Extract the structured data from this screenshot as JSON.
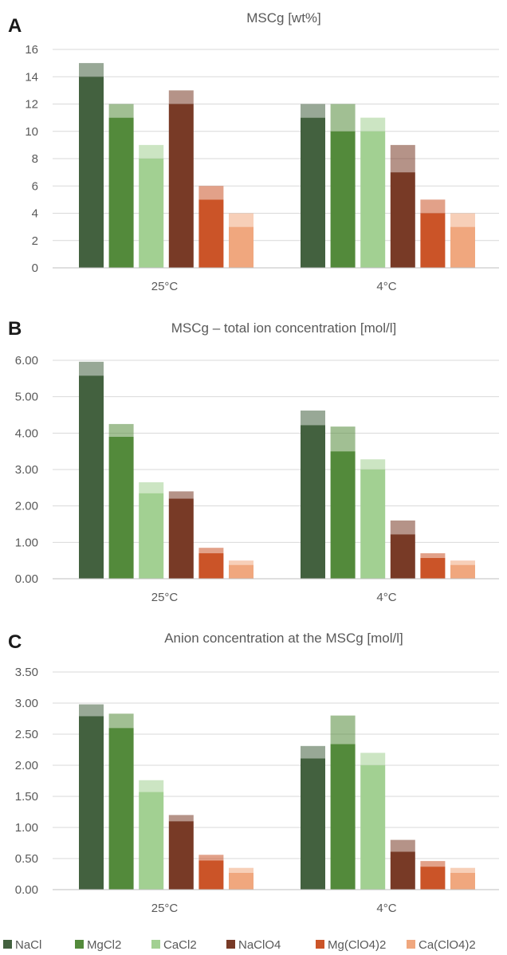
{
  "colors": {
    "NaCl": "#43613f",
    "MgCl2": "#538a3b",
    "CaCl2": "#a2d092",
    "NaClO4": "#783a26",
    "Mg(ClO4)2": "#cb5428",
    "Ca(ClO4)2": "#f0a77e",
    "upper_opacity": 0.55,
    "grid": "#d9d9d9",
    "tick_text": "#595959"
  },
  "legend": {
    "position": "bottom",
    "items": [
      "NaCl",
      "MgCl2",
      "CaCl2",
      "NaClO4",
      "Mg(ClO4)2",
      "Ca(ClO4)2"
    ]
  },
  "chart_data": [
    {
      "panel": "A",
      "type": "bar",
      "title": "MSCg  [wt%]",
      "categories": [
        "25°C",
        "4°C"
      ],
      "ylim": [
        0,
        16
      ],
      "yticks": [
        "0",
        "2",
        "4",
        "6",
        "8",
        "10",
        "12",
        "14",
        "16"
      ],
      "grid": true,
      "series": [
        {
          "name": "NaCl",
          "values": [
            14,
            11
          ],
          "upper": [
            15,
            12
          ]
        },
        {
          "name": "MgCl2",
          "values": [
            11,
            10
          ],
          "upper": [
            12,
            12
          ]
        },
        {
          "name": "CaCl2",
          "values": [
            8,
            10
          ],
          "upper": [
            9,
            11
          ]
        },
        {
          "name": "NaClO4",
          "values": [
            12,
            7
          ],
          "upper": [
            13,
            9
          ]
        },
        {
          "name": "Mg(ClO4)2",
          "values": [
            5,
            4
          ],
          "upper": [
            6,
            5
          ]
        },
        {
          "name": "Ca(ClO4)2",
          "values": [
            3,
            3
          ],
          "upper": [
            4,
            4
          ]
        }
      ]
    },
    {
      "panel": "B",
      "type": "bar",
      "title": "MSCg – total ion concentration [mol/l]",
      "categories": [
        "25°C",
        "4°C"
      ],
      "ylim": [
        0,
        6
      ],
      "yticks": [
        "0.00",
        "1.00",
        "2.00",
        "3.00",
        "4.00",
        "5.00",
        "6.00"
      ],
      "grid": true,
      "series": [
        {
          "name": "NaCl",
          "values": [
            5.58,
            4.22
          ],
          "upper": [
            5.96,
            4.62
          ]
        },
        {
          "name": "MgCl2",
          "values": [
            3.9,
            3.5
          ],
          "upper": [
            4.25,
            4.18
          ]
        },
        {
          "name": "CaCl2",
          "values": [
            2.35,
            3.0
          ],
          "upper": [
            2.65,
            3.28
          ]
        },
        {
          "name": "NaClO4",
          "values": [
            2.2,
            1.22
          ],
          "upper": [
            2.4,
            1.6
          ]
        },
        {
          "name": "Mg(ClO4)2",
          "values": [
            0.7,
            0.57
          ],
          "upper": [
            0.85,
            0.7
          ]
        },
        {
          "name": "Ca(ClO4)2",
          "values": [
            0.38,
            0.38
          ],
          "upper": [
            0.5,
            0.5
          ]
        }
      ]
    },
    {
      "panel": "C",
      "type": "bar",
      "title": "Anion concentration at the MSCg [mol/l]",
      "categories": [
        "25°C",
        "4°C"
      ],
      "ylim": [
        0,
        3.5
      ],
      "yticks": [
        "0.00",
        "0.50",
        "1.00",
        "1.50",
        "2.00",
        "2.50",
        "3.00",
        "3.50"
      ],
      "grid": true,
      "series": [
        {
          "name": "NaCl",
          "values": [
            2.79,
            2.11
          ],
          "upper": [
            2.98,
            2.31
          ]
        },
        {
          "name": "MgCl2",
          "values": [
            2.6,
            2.34
          ],
          "upper": [
            2.83,
            2.8
          ]
        },
        {
          "name": "CaCl2",
          "values": [
            1.57,
            2.0
          ],
          "upper": [
            1.76,
            2.2
          ]
        },
        {
          "name": "NaClO4",
          "values": [
            1.1,
            0.61
          ],
          "upper": [
            1.2,
            0.8
          ]
        },
        {
          "name": "Mg(ClO4)2",
          "values": [
            0.47,
            0.37
          ],
          "upper": [
            0.56,
            0.46
          ]
        },
        {
          "name": "Ca(ClO4)2",
          "values": [
            0.27,
            0.27
          ],
          "upper": [
            0.35,
            0.35
          ]
        }
      ]
    }
  ]
}
